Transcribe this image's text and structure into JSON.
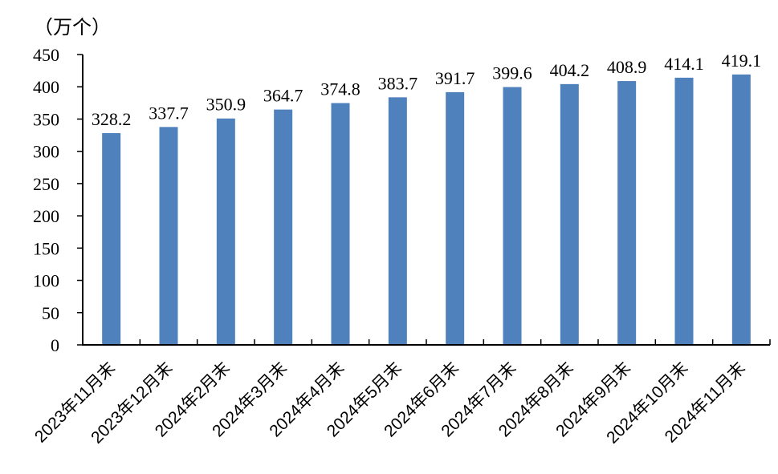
{
  "chart_data": {
    "type": "bar",
    "unit_label": "（万个）",
    "categories": [
      "2023年11月末",
      "2023年12月末",
      "2024年2月末",
      "2024年3月末",
      "2024年4月末",
      "2024年5月末",
      "2024年6月末",
      "2024年7月末",
      "2024年8月末",
      "2024年9月末",
      "2024年10月末",
      "2024年11月末"
    ],
    "values": [
      328.2,
      337.7,
      350.9,
      364.7,
      374.8,
      383.7,
      391.7,
      399.6,
      404.2,
      408.9,
      414.1,
      419.1
    ],
    "data_labels": [
      "328.2",
      "337.7",
      "350.9",
      "364.7",
      "374.8",
      "383.7",
      "391.7",
      "399.6",
      "404.2",
      "408.9",
      "414.1",
      "419.1"
    ],
    "ylim": [
      0,
      450
    ],
    "yticks": [
      0,
      50,
      100,
      150,
      200,
      250,
      300,
      350,
      400,
      450
    ],
    "grid": false,
    "legend": "none",
    "bar_color": "#4F81BD"
  }
}
